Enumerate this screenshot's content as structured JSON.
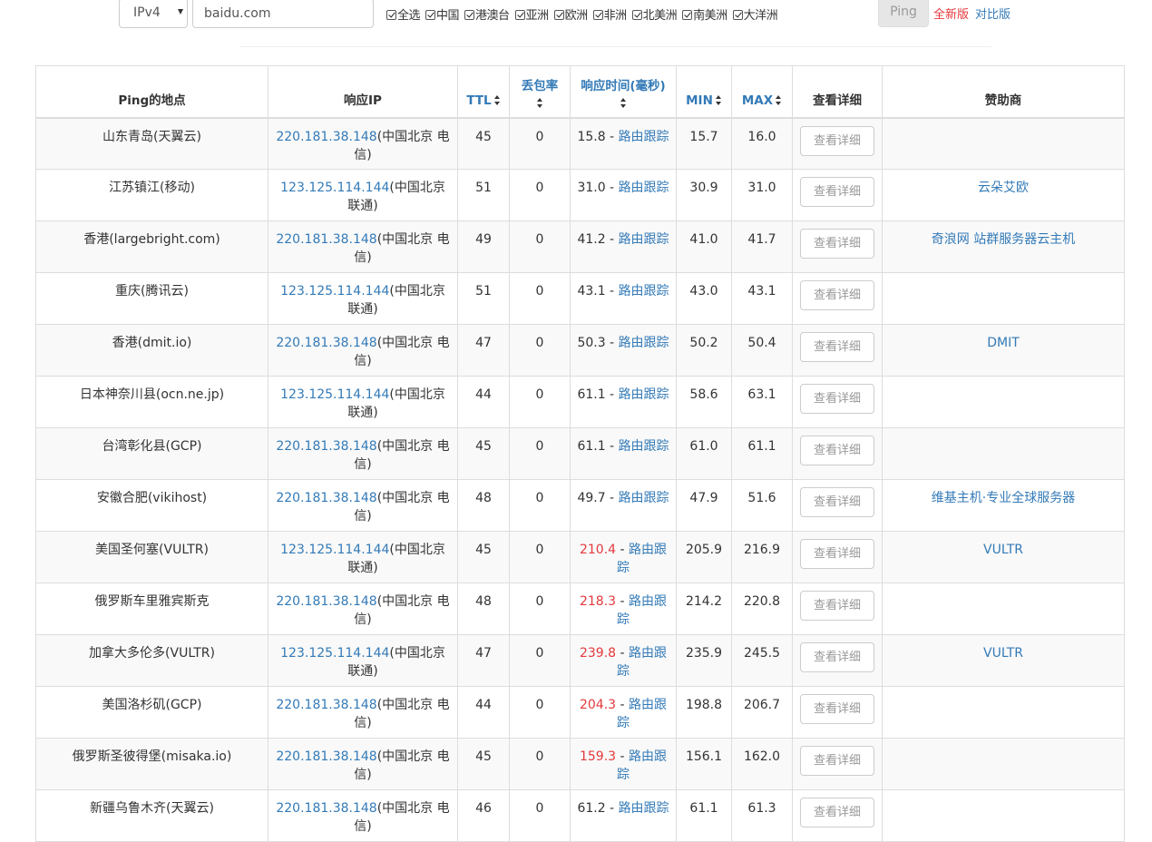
{
  "toolbar": {
    "ip_version": "IPv4",
    "domain_value": "baidu.com",
    "checks": [
      "全选",
      "中国",
      "港澳台",
      "亚洲",
      "欧洲",
      "非洲",
      "北美洲",
      "南美洲",
      "大洋洲"
    ],
    "ping_label": "Ping",
    "new_version_label": "全新版",
    "compare_label": "对比版"
  },
  "table": {
    "headers": {
      "location": "Ping的地点",
      "ip": "响应IP",
      "ttl": "TTL",
      "loss": "丢包率",
      "rt": "响应时间(毫秒)",
      "min": "MIN",
      "max": "MAX",
      "detail": "查看详细",
      "sponsor": "赞助商"
    },
    "trace_label": "路由跟踪",
    "detail_label": "查看详细",
    "rows": [
      {
        "location": "山东青岛(天翼云)",
        "ip": "220.181.38.148",
        "ip_loc": "(中国北京 电信)",
        "ttl": "45",
        "loss": "0",
        "rt": "15.8",
        "slow": false,
        "min": "15.7",
        "max": "16.0",
        "sponsor": ""
      },
      {
        "location": "江苏镇江(移动)",
        "ip": "123.125.114.144",
        "ip_loc": "(中国北京 联通)",
        "ttl": "51",
        "loss": "0",
        "rt": "31.0",
        "slow": false,
        "min": "30.9",
        "max": "31.0",
        "sponsor": "云朵艾欧"
      },
      {
        "location": "香港(largebright.com)",
        "ip": "220.181.38.148",
        "ip_loc": "(中国北京 电信)",
        "ttl": "49",
        "loss": "0",
        "rt": "41.2",
        "slow": false,
        "min": "41.0",
        "max": "41.7",
        "sponsor": "奇浪网 站群服务器云主机"
      },
      {
        "location": "重庆(腾讯云)",
        "ip": "123.125.114.144",
        "ip_loc": "(中国北京 联通)",
        "ttl": "51",
        "loss": "0",
        "rt": "43.1",
        "slow": false,
        "min": "43.0",
        "max": "43.1",
        "sponsor": ""
      },
      {
        "location": "香港(dmit.io)",
        "ip": "220.181.38.148",
        "ip_loc": "(中国北京 电信)",
        "ttl": "47",
        "loss": "0",
        "rt": "50.3",
        "slow": false,
        "min": "50.2",
        "max": "50.4",
        "sponsor": "DMIT"
      },
      {
        "location": "日本神奈川县(ocn.ne.jp)",
        "ip": "123.125.114.144",
        "ip_loc": "(中国北京 联通)",
        "ttl": "44",
        "loss": "0",
        "rt": "61.1",
        "slow": false,
        "min": "58.6",
        "max": "63.1",
        "sponsor": ""
      },
      {
        "location": "台湾彰化县(GCP)",
        "ip": "220.181.38.148",
        "ip_loc": "(中国北京 电信)",
        "ttl": "45",
        "loss": "0",
        "rt": "61.1",
        "slow": false,
        "min": "61.0",
        "max": "61.1",
        "sponsor": ""
      },
      {
        "location": "安徽合肥(vikihost)",
        "ip": "220.181.38.148",
        "ip_loc": "(中国北京 电信)",
        "ttl": "48",
        "loss": "0",
        "rt": "49.7",
        "slow": false,
        "min": "47.9",
        "max": "51.6",
        "sponsor": "维基主机·专业全球服务器"
      },
      {
        "location": "美国圣何塞(VULTR)",
        "ip": "123.125.114.144",
        "ip_loc": "(中国北京 联通)",
        "ttl": "45",
        "loss": "0",
        "rt": "210.4",
        "slow": true,
        "min": "205.9",
        "max": "216.9",
        "sponsor": "VULTR"
      },
      {
        "location": "俄罗斯车里雅宾斯克",
        "ip": "220.181.38.148",
        "ip_loc": "(中国北京 电信)",
        "ttl": "48",
        "loss": "0",
        "rt": "218.3",
        "slow": true,
        "min": "214.2",
        "max": "220.8",
        "sponsor": ""
      },
      {
        "location": "加拿大多伦多(VULTR)",
        "ip": "123.125.114.144",
        "ip_loc": "(中国北京 联通)",
        "ttl": "47",
        "loss": "0",
        "rt": "239.8",
        "slow": true,
        "min": "235.9",
        "max": "245.5",
        "sponsor": "VULTR"
      },
      {
        "location": "美国洛杉矶(GCP)",
        "ip": "220.181.38.148",
        "ip_loc": "(中国北京 电信)",
        "ttl": "44",
        "loss": "0",
        "rt": "204.3",
        "slow": true,
        "min": "198.8",
        "max": "206.7",
        "sponsor": ""
      },
      {
        "location": "俄罗斯圣彼得堡(misaka.io)",
        "ip": "220.181.38.148",
        "ip_loc": "(中国北京 电信)",
        "ttl": "45",
        "loss": "0",
        "rt": "159.3",
        "slow": true,
        "min": "156.1",
        "max": "162.0",
        "sponsor": ""
      },
      {
        "location": "新疆乌鲁木齐(天翼云)",
        "ip": "220.181.38.148",
        "ip_loc": "(中国北京 电信)",
        "ttl": "46",
        "loss": "0",
        "rt": "61.2",
        "slow": false,
        "min": "61.1",
        "max": "61.3",
        "sponsor": ""
      }
    ]
  },
  "colors": {
    "link": "#337ab7",
    "slow": "#e4393c",
    "stripe": "#f9f9f9",
    "border": "#dddddd"
  },
  "icons": {
    "sort": "sort-icon",
    "dropdown": "chevron-down-icon",
    "checkbox": "checkbox-checked-icon"
  }
}
